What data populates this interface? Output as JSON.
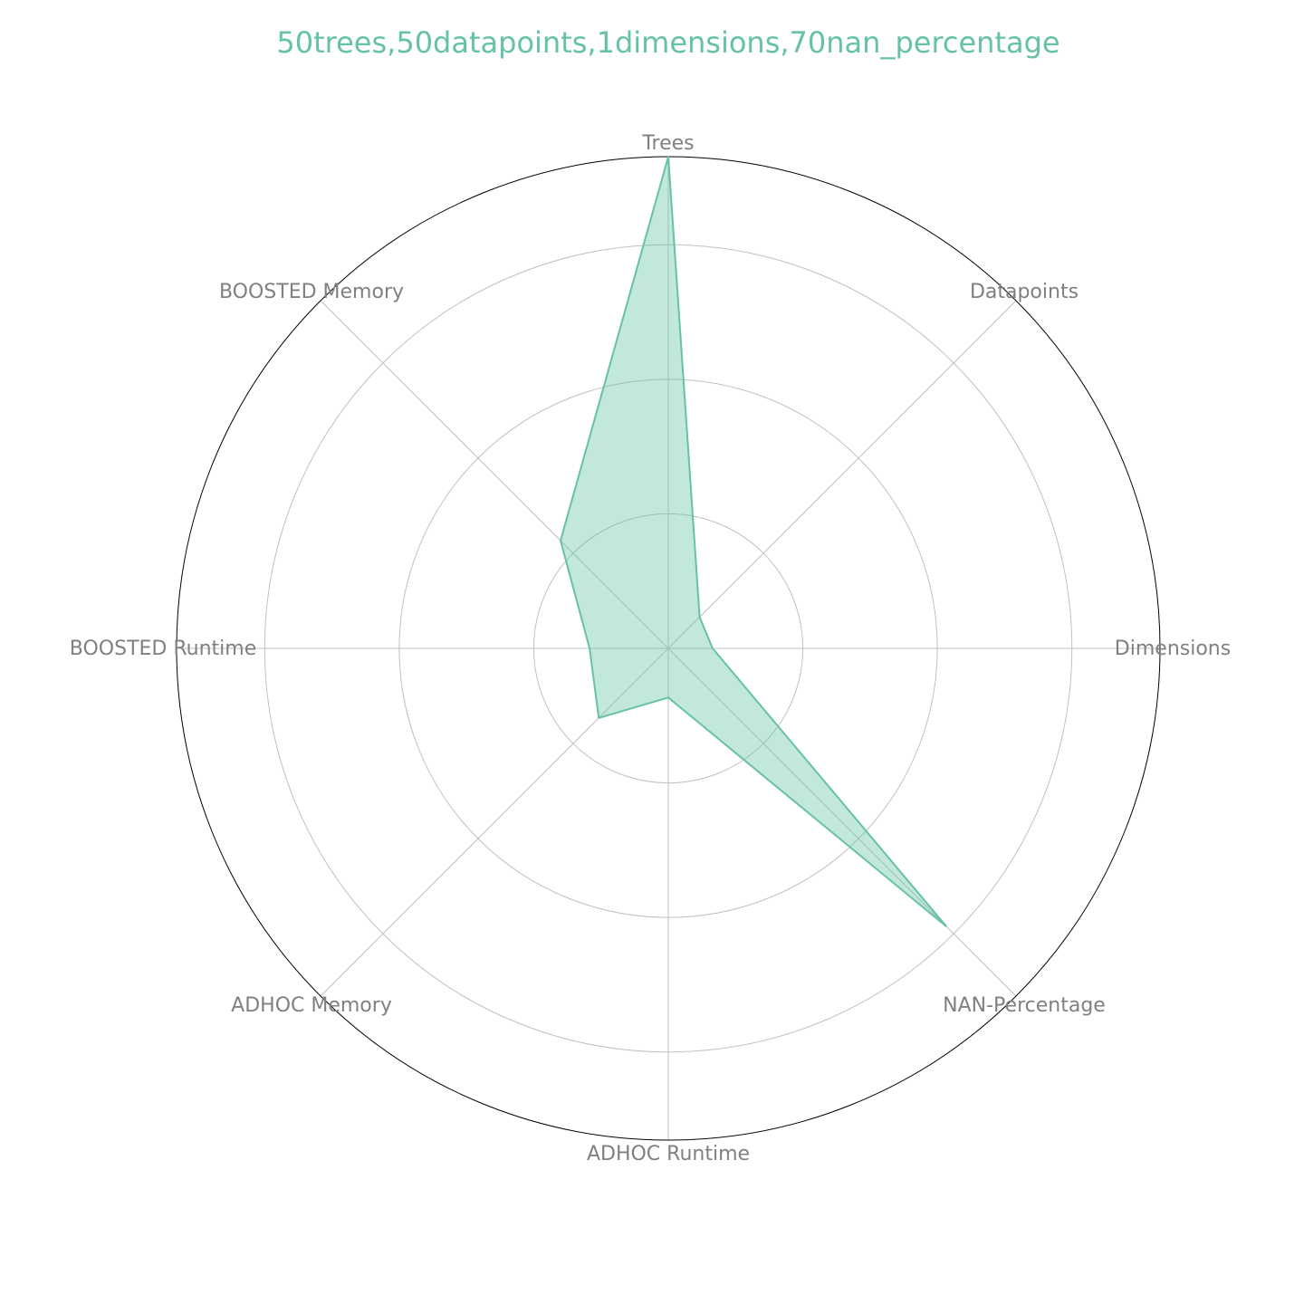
{
  "chart_data": {
    "type": "radar",
    "title": "50trees,50datapoints,1dimensions,70nan_percentage",
    "axes": [
      "Trees",
      "Datapoints",
      "Dimensions",
      "NAN-Percentage",
      "ADHOC Runtime",
      "ADHOC Memory",
      "BOOSTED Runtime",
      "BOOSTED Memory"
    ],
    "values": [
      1.0,
      0.09,
      0.09,
      0.8,
      0.1,
      0.2,
      0.16,
      0.31
    ],
    "rlim": [
      0,
      1
    ],
    "grid": true,
    "colors": {
      "series": "#66c2a5",
      "grid": "#c0c0c0",
      "outline": "#000000",
      "label": "#808080"
    }
  }
}
